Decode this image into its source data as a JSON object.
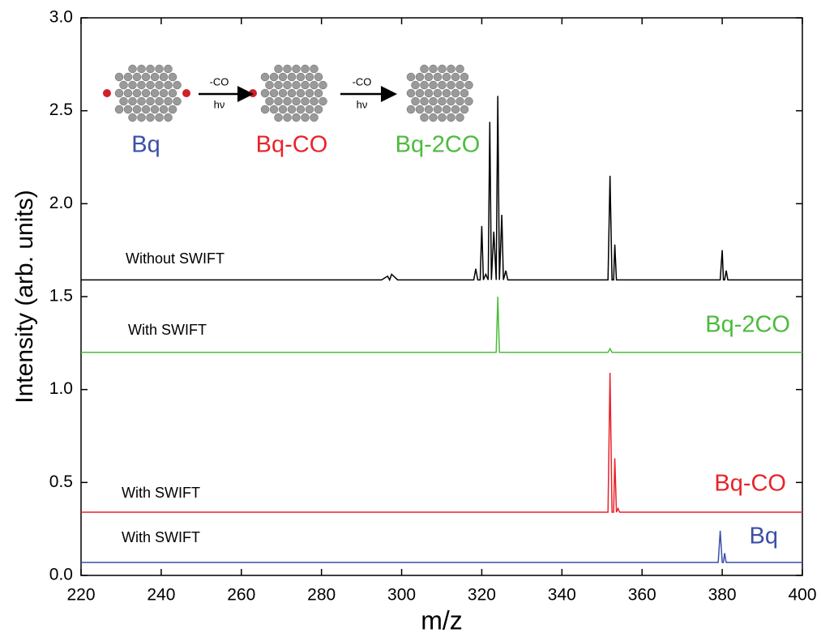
{
  "chart_data": {
    "type": "line",
    "xlabel": "m/z",
    "ylabel": "Intensity (arb. units)",
    "x": [
      220,
      260,
      295,
      296.5,
      297,
      297.5,
      299,
      318,
      318.5,
      319,
      319.6,
      320,
      320.4,
      321,
      321.6,
      322,
      322.4,
      323,
      323.6,
      324,
      324.4,
      325,
      325.4,
      326,
      326.5,
      330,
      351.5,
      352,
      352.5,
      352.9,
      353.2,
      353.6,
      354,
      354.4,
      360,
      379,
      379.5,
      380,
      380.3,
      380.6,
      381,
      381.4,
      400
    ],
    "series": [
      {
        "name": "Without SWIFT",
        "color": "#000000",
        "values": [
          1.59,
          1.59,
          1.59,
          1.61,
          1.59,
          1.62,
          1.59,
          1.59,
          1.65,
          1.59,
          1.59,
          1.88,
          1.59,
          1.62,
          1.59,
          2.44,
          1.59,
          1.85,
          1.59,
          2.58,
          1.59,
          1.94,
          1.59,
          1.64,
          1.59,
          1.59,
          1.59,
          2.15,
          1.59,
          1.59,
          1.78,
          1.59,
          1.59,
          1.59,
          1.59,
          1.59,
          1.59,
          1.75,
          1.59,
          1.59,
          1.64,
          1.59,
          1.59
        ]
      },
      {
        "name": "Bq-2CO",
        "color": "#4cbb3c",
        "values": [
          1.2,
          1.2,
          1.2,
          1.2,
          1.2,
          1.2,
          1.2,
          1.2,
          1.2,
          1.2,
          1.2,
          1.2,
          1.2,
          1.2,
          1.2,
          1.2,
          1.2,
          1.2,
          1.2,
          1.5,
          1.2,
          1.2,
          1.2,
          1.2,
          1.2,
          1.2,
          1.2,
          1.22,
          1.2,
          1.2,
          1.2,
          1.2,
          1.2,
          1.2,
          1.2,
          1.2,
          1.2,
          1.2,
          1.2,
          1.2,
          1.2,
          1.2,
          1.2
        ]
      },
      {
        "name": "Bq-CO",
        "color": "#e8232a",
        "values": [
          0.34,
          0.34,
          0.34,
          0.34,
          0.34,
          0.34,
          0.34,
          0.34,
          0.34,
          0.34,
          0.34,
          0.34,
          0.34,
          0.34,
          0.34,
          0.34,
          0.34,
          0.34,
          0.34,
          0.34,
          0.34,
          0.34,
          0.34,
          0.34,
          0.34,
          0.34,
          0.34,
          1.09,
          0.34,
          0.34,
          0.63,
          0.34,
          0.36,
          0.34,
          0.34,
          0.34,
          0.34,
          0.34,
          0.34,
          0.34,
          0.34,
          0.34,
          0.34
        ]
      },
      {
        "name": "Bq",
        "color": "#3a4fa8",
        "values": [
          0.07,
          0.07,
          0.07,
          0.07,
          0.07,
          0.07,
          0.07,
          0.07,
          0.07,
          0.07,
          0.07,
          0.07,
          0.07,
          0.07,
          0.07,
          0.07,
          0.07,
          0.07,
          0.07,
          0.07,
          0.07,
          0.07,
          0.07,
          0.07,
          0.07,
          0.07,
          0.07,
          0.07,
          0.07,
          0.07,
          0.07,
          0.07,
          0.07,
          0.07,
          0.07,
          0.07,
          0.24,
          0.07,
          0.07,
          0.12,
          0.07,
          0.07,
          0.07
        ]
      }
    ],
    "annotations": [
      "With SWIFT",
      "With SWIFT",
      "With SWIFT"
    ],
    "xlim": [
      220,
      400
    ],
    "xticks": [
      220,
      240,
      260,
      280,
      300,
      320,
      340,
      360,
      380,
      400
    ],
    "ylim": [
      0,
      3
    ],
    "yticks": [
      {
        "value": 0,
        "label": "0.0"
      },
      0.5,
      {
        "value": 1,
        "label": "1.0"
      },
      1.5,
      {
        "value": 2,
        "label": "2.0"
      },
      2.5,
      {
        "value": 3,
        "label": "3.0"
      }
    ]
  },
  "scheme": {
    "molecules": [
      "Bq",
      "Bq-CO",
      "Bq-2CO"
    ],
    "arrows": [
      {
        "top": "-CO",
        "bottom": "hν"
      },
      {
        "top": "-CO",
        "bottom": "hν"
      }
    ]
  }
}
